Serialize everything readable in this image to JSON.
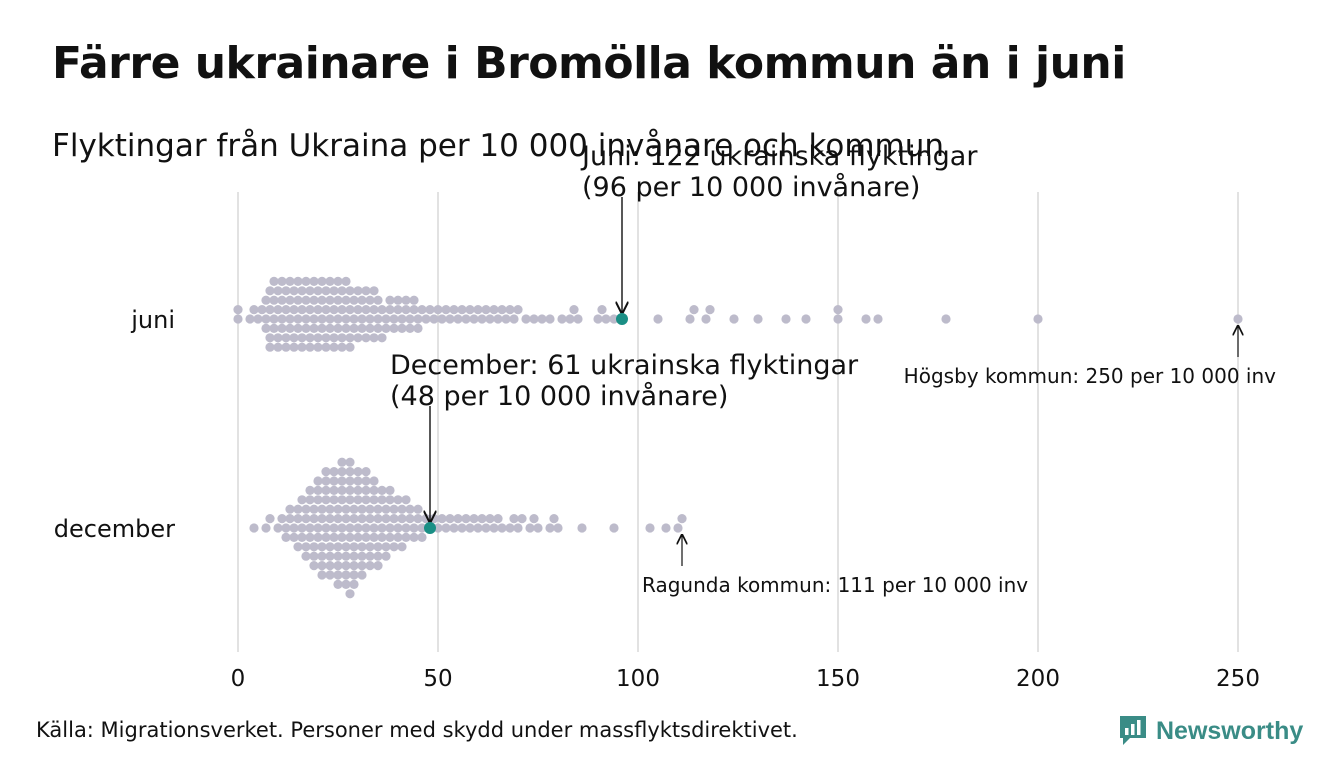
{
  "title": "Färre ukrainare i Bromölla kommun än i juni",
  "subtitle": "Flyktingar från Ukraina per 10 000 invånare och kommun",
  "source": "Källa: Migrationsverket. Personer med skydd under massflyktsdirektivet.",
  "brand": "Newsworthy",
  "colors": {
    "dot": "#bdbbcb",
    "highlight": "#1a8f85",
    "grid": "#cfcfcf",
    "brand": "#3a8c86"
  },
  "chart_data": {
    "type": "scatter",
    "subtype": "beeswarm",
    "xlim": [
      0,
      250
    ],
    "x_ticks": [
      0,
      50,
      100,
      150,
      200,
      250
    ],
    "categories": [
      "juni",
      "december"
    ],
    "grid": true,
    "series": [
      {
        "name": "juni",
        "highlight": {
          "value": 96,
          "label_lines": [
            "Juni: 122 ukrainska flyktingar",
            "(96 per 10 000 invånare)"
          ]
        },
        "extreme": {
          "value": 250,
          "label": "Högsby kommun: 250 per 10 000 inv"
        },
        "values": [
          0,
          0,
          3,
          4,
          5,
          6,
          7,
          7,
          7,
          8,
          8,
          8,
          8,
          9,
          9,
          9,
          9,
          10,
          10,
          10,
          10,
          11,
          11,
          11,
          11,
          12,
          12,
          12,
          12,
          13,
          13,
          13,
          13,
          14,
          14,
          14,
          14,
          15,
          15,
          15,
          15,
          16,
          16,
          16,
          16,
          17,
          17,
          17,
          17,
          18,
          18,
          18,
          18,
          19,
          19,
          19,
          19,
          20,
          20,
          20,
          20,
          21,
          21,
          21,
          21,
          22,
          22,
          22,
          22,
          23,
          23,
          23,
          23,
          24,
          24,
          24,
          24,
          25,
          25,
          25,
          25,
          26,
          26,
          26,
          26,
          27,
          27,
          27,
          27,
          28,
          28,
          28,
          28,
          29,
          29,
          29,
          30,
          30,
          30,
          31,
          31,
          31,
          32,
          32,
          32,
          33,
          33,
          33,
          34,
          34,
          34,
          35,
          35,
          35,
          36,
          36,
          37,
          37,
          38,
          38,
          39,
          39,
          40,
          40,
          41,
          41,
          42,
          42,
          43,
          43,
          44,
          44,
          45,
          45,
          46,
          47,
          48,
          49,
          50,
          51,
          52,
          53,
          54,
          55,
          56,
          57,
          58,
          59,
          60,
          61,
          62,
          63,
          64,
          65,
          66,
          67,
          68,
          69,
          70,
          72,
          74,
          76,
          78,
          81,
          83,
          84,
          85,
          90,
          91,
          92,
          94,
          96,
          105,
          113,
          114,
          117,
          118,
          124,
          130,
          137,
          142,
          150,
          150,
          157,
          160,
          177,
          200,
          250
        ]
      },
      {
        "name": "december",
        "highlight": {
          "value": 48,
          "label_lines": [
            "December:  61 ukrainska flyktingar",
            "(48 per 10 000 invånare)"
          ]
        },
        "extreme": {
          "value": 111,
          "label": "Ragunda kommun: 111 per 10 000 inv"
        },
        "values": [
          4,
          7,
          8,
          10,
          11,
          12,
          12,
          13,
          13,
          14,
          14,
          15,
          15,
          15,
          16,
          16,
          16,
          17,
          17,
          17,
          17,
          18,
          18,
          18,
          18,
          19,
          19,
          19,
          19,
          19,
          20,
          20,
          20,
          20,
          20,
          21,
          21,
          21,
          21,
          21,
          21,
          22,
          22,
          22,
          22,
          22,
          22,
          23,
          23,
          23,
          23,
          23,
          23,
          24,
          24,
          24,
          24,
          24,
          24,
          25,
          25,
          25,
          25,
          25,
          25,
          25,
          26,
          26,
          26,
          26,
          26,
          26,
          26,
          27,
          27,
          27,
          27,
          27,
          27,
          27,
          28,
          28,
          28,
          28,
          28,
          28,
          28,
          28,
          29,
          29,
          29,
          29,
          29,
          29,
          29,
          30,
          30,
          30,
          30,
          30,
          30,
          31,
          31,
          31,
          31,
          31,
          31,
          32,
          32,
          32,
          32,
          32,
          32,
          33,
          33,
          33,
          33,
          33,
          34,
          34,
          34,
          34,
          34,
          35,
          35,
          35,
          35,
          35,
          36,
          36,
          36,
          36,
          37,
          37,
          37,
          37,
          38,
          38,
          38,
          38,
          39,
          39,
          39,
          40,
          40,
          40,
          41,
          41,
          41,
          42,
          42,
          42,
          43,
          43,
          44,
          44,
          45,
          45,
          46,
          46,
          47,
          48,
          49,
          50,
          51,
          52,
          53,
          54,
          55,
          56,
          57,
          58,
          59,
          60,
          61,
          62,
          63,
          64,
          65,
          66,
          68,
          69,
          70,
          71,
          73,
          74,
          75,
          78,
          79,
          80,
          86,
          94,
          103,
          107,
          110,
          111
        ]
      }
    ]
  }
}
